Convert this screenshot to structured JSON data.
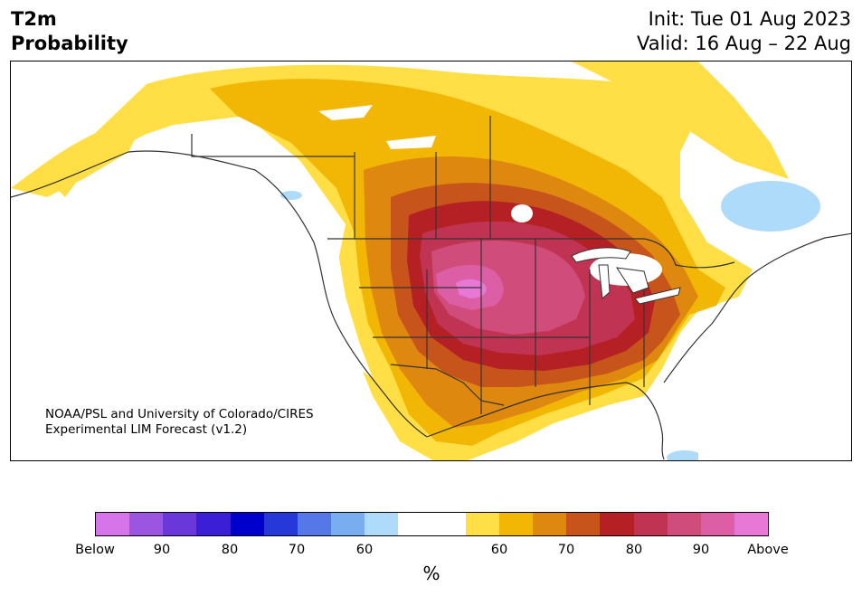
{
  "header": {
    "variable": "T2m",
    "product": "Probability",
    "init": "Init: Tue 01 Aug 2023",
    "valid": "Valid: 16 Aug – 22 Aug"
  },
  "credit": {
    "line1": "NOAA/PSL and University of Colorado/CIRES",
    "line2": "Experimental LIM Forecast (v1.2)"
  },
  "colorbar": {
    "colors": [
      "#d674ea",
      "#9b55e0",
      "#6a38d8",
      "#3a1fd6",
      "#0000cc",
      "#2638d8",
      "#5577e8",
      "#78aef0",
      "#aedbfa",
      "#ffffff",
      "#ffffff",
      "#ffdf45",
      "#f2b705",
      "#de8810",
      "#c7541a",
      "#b52024",
      "#c03352",
      "#d04c7a",
      "#dc5fa6",
      "#e878d6"
    ],
    "tick_labels": [
      "Below",
      "90",
      "80",
      "70",
      "60",
      "60",
      "70",
      "80",
      "90",
      "Above"
    ],
    "unit": "%"
  },
  "legend_colors": {
    "prob_50_60": "#ffdf45",
    "prob_60_65": "#f2b705",
    "prob_65_70": "#de8810",
    "prob_70_75": "#c7541a",
    "prob_75_80": "#b52024",
    "prob_80_85": "#c03352",
    "prob_85_90": "#d04c7a",
    "prob_90_95": "#dc5fa6",
    "prob_95_above": "#e878d6",
    "below_60": "#aedbfa"
  }
}
